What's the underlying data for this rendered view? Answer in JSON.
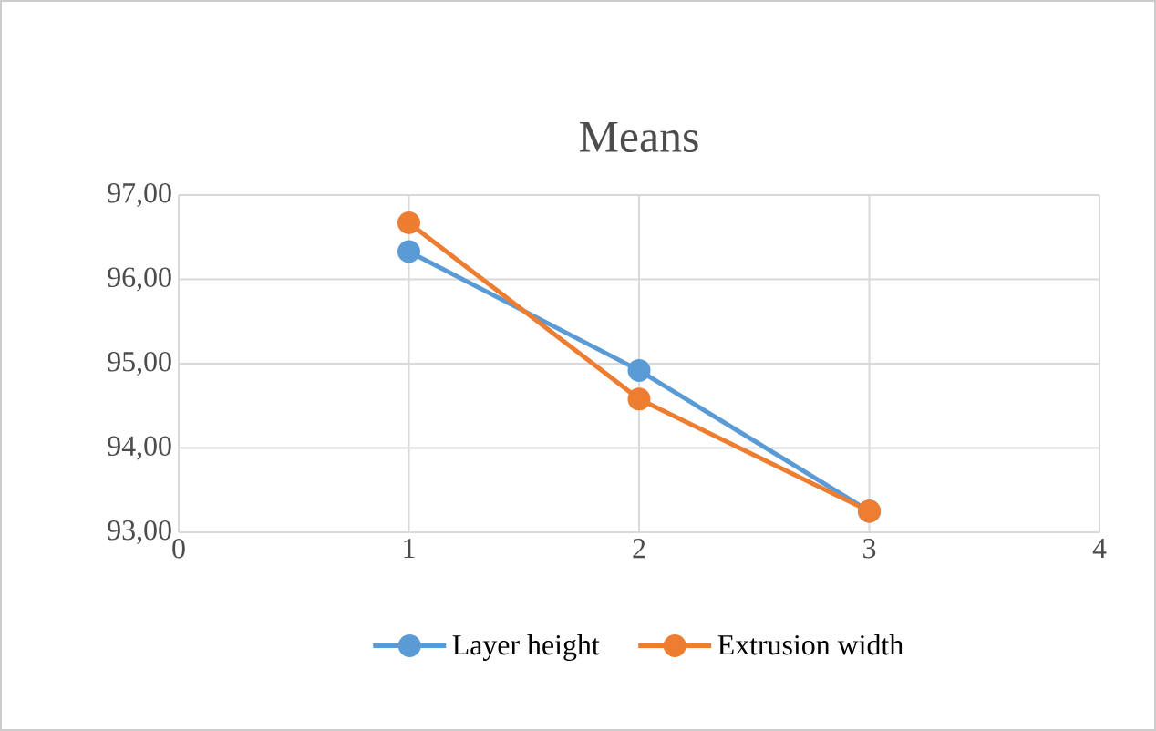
{
  "chart_data": {
    "type": "line",
    "title": "Means",
    "x": [
      1,
      2,
      3
    ],
    "series": [
      {
        "name": "Layer height",
        "color": "#5b9bd5",
        "values": [
          96.33,
          94.92,
          93.25
        ]
      },
      {
        "name": "Extrusion width",
        "color": "#ed7d31",
        "values": [
          96.67,
          94.58,
          93.25
        ]
      }
    ],
    "xlim": [
      0,
      4
    ],
    "xticks": [
      0,
      1,
      2,
      3,
      4
    ],
    "ylim": [
      93,
      97
    ],
    "yticks": [
      {
        "value": 93,
        "label": "93,00"
      },
      {
        "value": 94,
        "label": "94,00"
      },
      {
        "value": 95,
        "label": "95,00"
      },
      {
        "value": 96,
        "label": "96,00"
      },
      {
        "value": 97,
        "label": "97,00"
      }
    ],
    "grid": true,
    "legend": "bottom",
    "marker": "circle",
    "line_style": "solid"
  }
}
